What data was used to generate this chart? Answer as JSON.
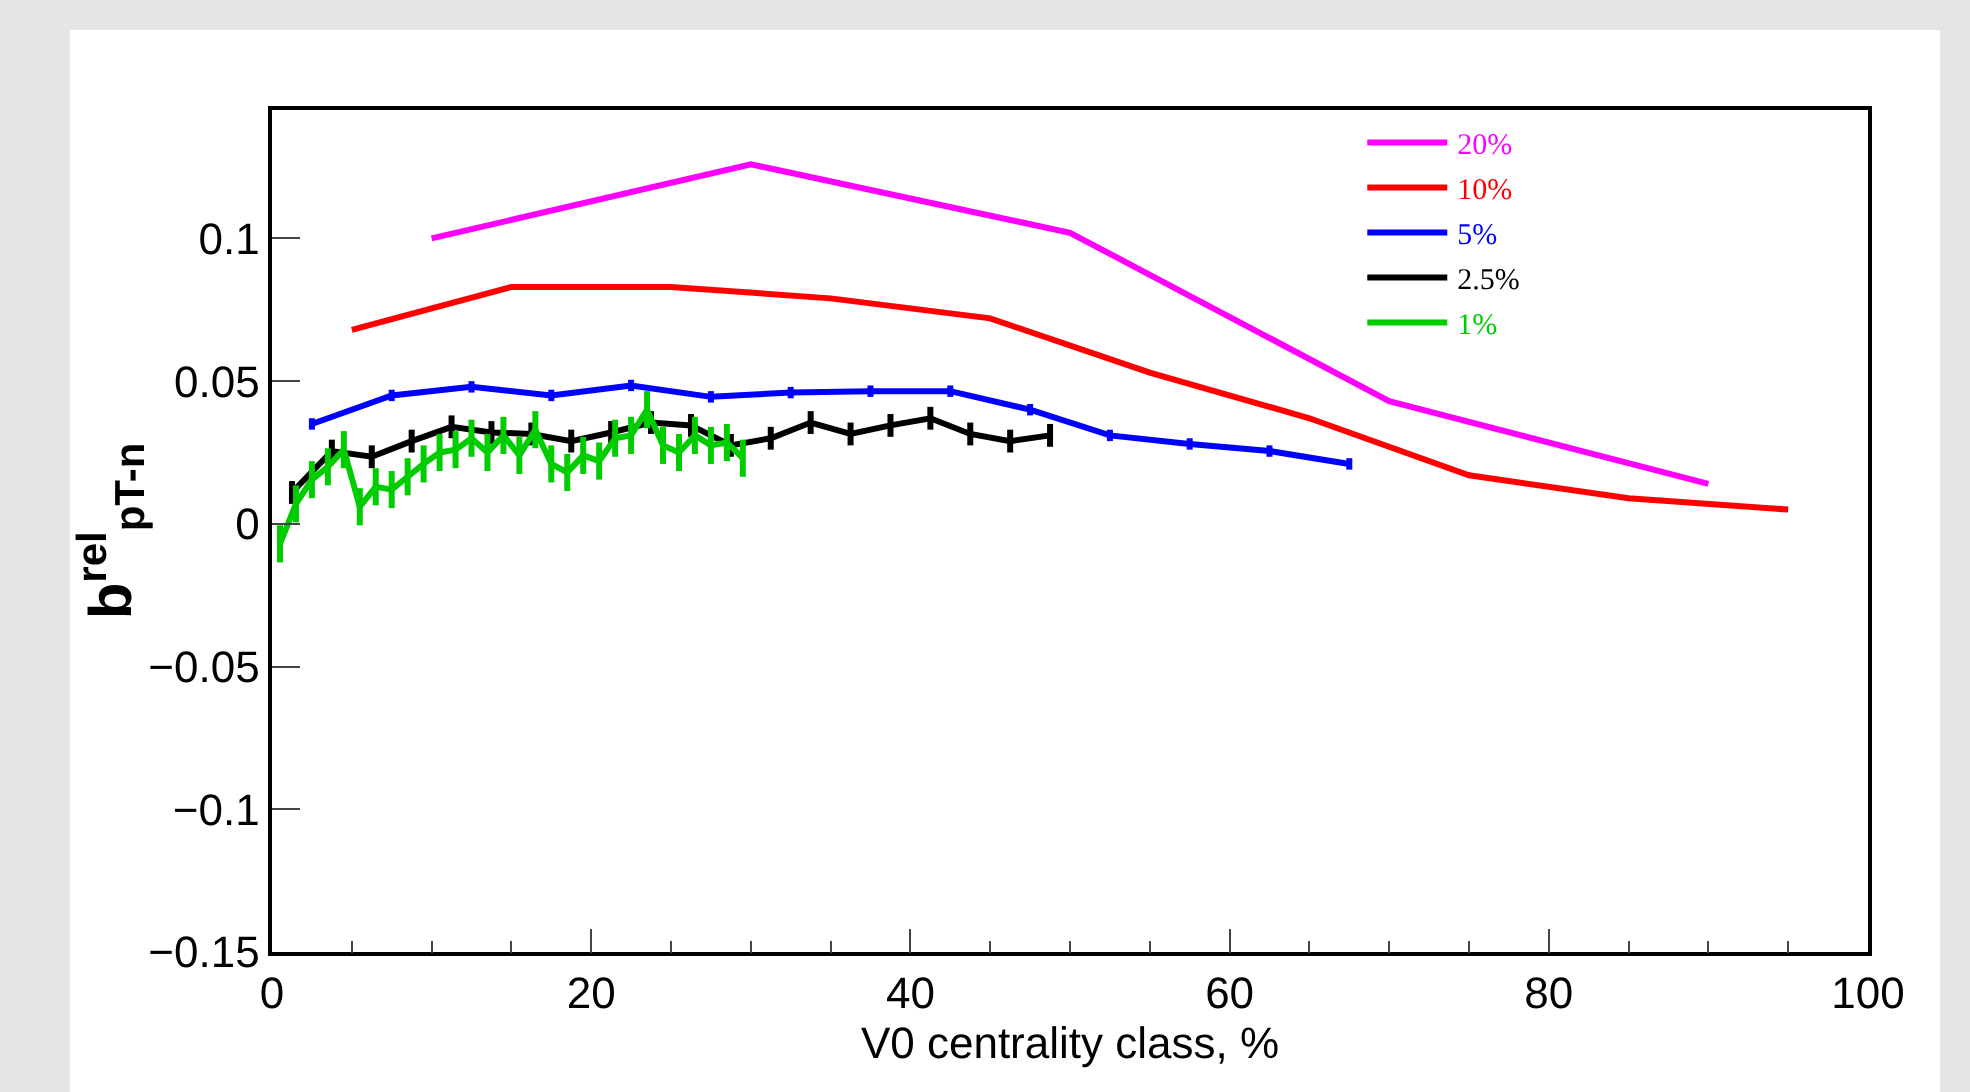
{
  "chart_data": {
    "type": "line",
    "xlabel": "V0 centrality class, %",
    "ylabel": "b$^{rel}$$_{pT-n}$",
    "xlim": [
      0,
      100
    ],
    "xticks": [
      0,
      20,
      40,
      60,
      80,
      100
    ],
    "ylim": [
      -0.15,
      0.145
    ],
    "yticks": [
      {
        "value": -0.15,
        "label": "−0.15"
      },
      {
        "value": -0.1,
        "label": "−0.1"
      },
      {
        "value": -0.05,
        "label": "−0.05"
      },
      0,
      0.05,
      0.1
    ],
    "grid": false,
    "legend": "top right",
    "marker": "none",
    "line_style": "solid",
    "series": [
      {
        "name": "20%",
        "color": "#ff00ff",
        "x": [
          10,
          30,
          50,
          70,
          90
        ],
        "values": [
          0.1,
          0.126,
          0.102,
          0.043,
          0.014
        ]
      },
      {
        "name": "10%",
        "color": "#ff0000",
        "x": [
          5,
          15,
          25,
          35,
          45,
          55,
          65,
          75,
          85,
          95
        ],
        "values": [
          0.068,
          0.083,
          0.083,
          0.079,
          0.072,
          0.053,
          0.037,
          0.017,
          0.009,
          0.005
        ]
      },
      {
        "name": "5%",
        "color": "#0000ff",
        "x": [
          2.5,
          7.5,
          12.5,
          17.5,
          22.5,
          27.5,
          32.5,
          37.5,
          42.5,
          47.5,
          52.5,
          57.5,
          62.5,
          67.5
        ],
        "values": [
          0.035,
          0.045,
          0.048,
          0.045,
          0.0485,
          0.0445,
          0.046,
          0.0465,
          0.0465,
          0.04,
          0.031,
          0.028,
          0.0255,
          0.021
        ],
        "errors": [
          0.002,
          0.002,
          0.002,
          0.002,
          0.002,
          0.002,
          0.002,
          0.002,
          0.002,
          0.002,
          0.002,
          0.002,
          0.002,
          0.002
        ]
      },
      {
        "name": "2.5%",
        "color": "#000000",
        "x": [
          1.25,
          3.75,
          6.25,
          8.75,
          11.25,
          13.75,
          16.25,
          18.75,
          21.25,
          23.75,
          26.25,
          28.75,
          31.25,
          33.75,
          36.25,
          38.75,
          41.25,
          43.75,
          46.25,
          48.75
        ],
        "values": [
          0.011,
          0.0255,
          0.0235,
          0.029,
          0.034,
          0.032,
          0.0315,
          0.029,
          0.032,
          0.0355,
          0.0345,
          0.0275,
          0.03,
          0.0355,
          0.0315,
          0.0345,
          0.037,
          0.0315,
          0.029,
          0.031
        ],
        "errors": [
          0.004,
          0.004,
          0.004,
          0.004,
          0.004,
          0.004,
          0.004,
          0.004,
          0.004,
          0.004,
          0.004,
          0.004,
          0.004,
          0.004,
          0.004,
          0.004,
          0.004,
          0.004,
          0.004,
          0.004
        ]
      },
      {
        "name": "1%",
        "color": "#00cc00",
        "x": [
          0.5,
          1.5,
          2.5,
          3.5,
          4.5,
          5.5,
          6.5,
          7.5,
          8.5,
          9.5,
          10.5,
          11.5,
          12.5,
          13.5,
          14.5,
          15.5,
          16.5,
          17.5,
          18.5,
          19.5,
          20.5,
          21.5,
          22.5,
          23.5,
          24.5,
          25.5,
          26.5,
          27.5,
          28.5,
          29.5
        ],
        "values": [
          -0.007,
          0.007,
          0.0155,
          0.02,
          0.026,
          0.006,
          0.013,
          0.012,
          0.0165,
          0.021,
          0.025,
          0.026,
          0.03,
          0.025,
          0.031,
          0.024,
          0.033,
          0.021,
          0.018,
          0.024,
          0.022,
          0.03,
          0.031,
          0.04,
          0.0275,
          0.025,
          0.031,
          0.0275,
          0.0285,
          0.023
        ],
        "errors": [
          0.0065,
          0.0065,
          0.0065,
          0.0065,
          0.0065,
          0.0065,
          0.0065,
          0.0065,
          0.0065,
          0.0065,
          0.0065,
          0.0065,
          0.0065,
          0.0065,
          0.0065,
          0.0065,
          0.0065,
          0.0065,
          0.0065,
          0.0065,
          0.0065,
          0.0065,
          0.0065,
          0.0065,
          0.0065,
          0.0065,
          0.0065,
          0.0065,
          0.0065,
          0.0065
        ]
      }
    ]
  }
}
